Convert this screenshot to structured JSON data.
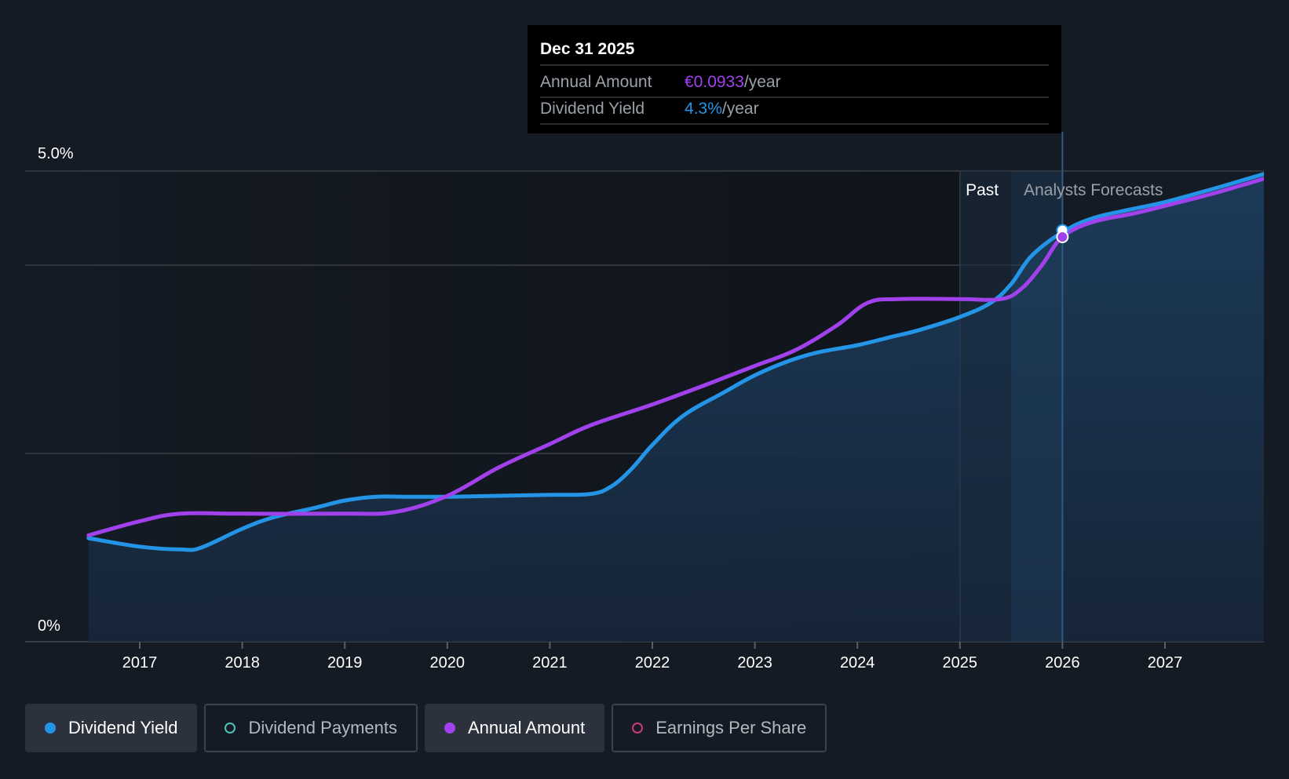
{
  "chart_data": {
    "type": "line",
    "y_axis": {
      "ticks": [
        {
          "label": "5.0%",
          "value": 5.0
        },
        {
          "label": "0%",
          "value": 0
        }
      ],
      "ylim": [
        0,
        5.0
      ],
      "gridlines": [
        0,
        2.0,
        4.0,
        5.0
      ]
    },
    "x_axis": {
      "ticks": [
        "2017",
        "2018",
        "2019",
        "2020",
        "2021",
        "2022",
        "2023",
        "2024",
        "2025",
        "2026",
        "2027"
      ],
      "xlim": [
        2016.0,
        2028.0
      ]
    },
    "series": [
      {
        "name": "Dividend Yield",
        "color": "#2394e6",
        "x": [
          2016.5,
          2017.0,
          2017.4,
          2017.6,
          2018.0,
          2018.3,
          2018.7,
          2019.0,
          2019.3,
          2019.6,
          2020.0,
          2020.5,
          2021.0,
          2021.4,
          2021.6,
          2021.8,
          2022.0,
          2022.3,
          2022.7,
          2023.0,
          2023.3,
          2023.6,
          2024.0,
          2024.3,
          2024.6,
          2025.0,
          2025.3,
          2025.5,
          2025.7,
          2026.0,
          2026.3,
          2026.7,
          2027.0,
          2027.5,
          2028.0
        ],
        "y": [
          1.1,
          1.01,
          0.98,
          1.0,
          1.2,
          1.32,
          1.42,
          1.5,
          1.54,
          1.54,
          1.54,
          1.55,
          1.56,
          1.57,
          1.65,
          1.84,
          2.09,
          2.4,
          2.65,
          2.83,
          2.97,
          3.07,
          3.15,
          3.23,
          3.31,
          3.45,
          3.6,
          3.8,
          4.1,
          4.35,
          4.5,
          4.6,
          4.67,
          4.82,
          4.98
        ]
      },
      {
        "name": "Annual Amount",
        "color": "#a141ec",
        "x": [
          2016.5,
          2017.0,
          2017.4,
          2018.0,
          2019.0,
          2019.5,
          2020.0,
          2020.5,
          2021.0,
          2021.4,
          2022.0,
          2022.5,
          2023.0,
          2023.4,
          2023.8,
          2024.1,
          2024.4,
          2025.0,
          2025.4,
          2025.6,
          2025.8,
          2026.0,
          2026.3,
          2026.7,
          2027.0,
          2027.5,
          2028.0
        ],
        "y": [
          1.13,
          1.28,
          1.36,
          1.36,
          1.36,
          1.38,
          1.55,
          1.85,
          2.1,
          2.3,
          2.52,
          2.72,
          2.93,
          3.1,
          3.36,
          3.6,
          3.64,
          3.64,
          3.64,
          3.75,
          4.0,
          4.3,
          4.46,
          4.55,
          4.63,
          4.77,
          4.93
        ]
      }
    ],
    "regions": {
      "past_label": "Past",
      "forecast_label": "Analysts Forecasts",
      "forecast_start": 2025.5,
      "highlight_start": 2025.0,
      "highlight_end": 2026.0
    },
    "tooltip": {
      "date": "Dec 31 2025",
      "x": 2026.0,
      "rows": [
        {
          "label": "Annual Amount",
          "value": "€0.0933",
          "unit": "/year",
          "color": "#a141ec"
        },
        {
          "label": "Dividend Yield",
          "value": "4.3%",
          "unit": "/year",
          "color": "#2394e6"
        }
      ]
    }
  },
  "legend": [
    {
      "label": "Dividend Yield",
      "color": "#2394e6",
      "state": "active",
      "marker": "filled",
      "icon": "dividend-yield-dot-icon"
    },
    {
      "label": "Dividend Payments",
      "color": "#4fc3b8",
      "state": "inactive",
      "marker": "hollow",
      "icon": "dividend-payments-dot-icon"
    },
    {
      "label": "Annual Amount",
      "color": "#a141ec",
      "state": "active",
      "marker": "filled",
      "icon": "annual-amount-dot-icon"
    },
    {
      "label": "Earnings Per Share",
      "color": "#c93b7a",
      "state": "inactive",
      "marker": "hollow",
      "icon": "earnings-per-share-dot-icon"
    }
  ]
}
